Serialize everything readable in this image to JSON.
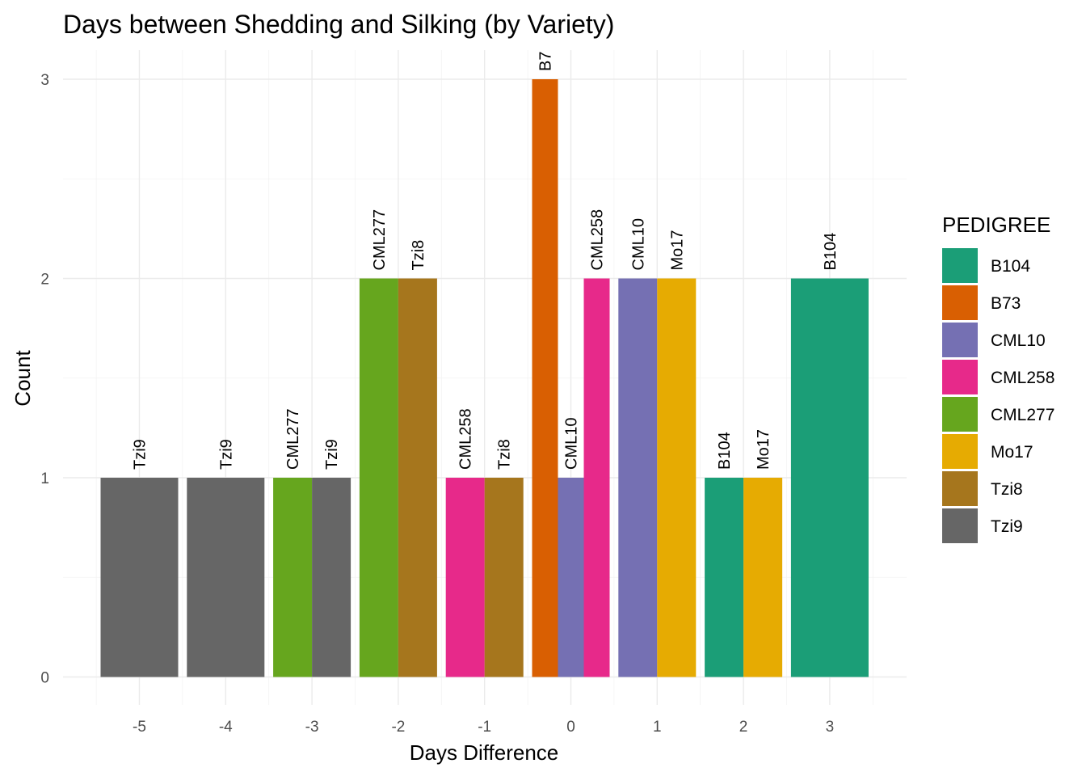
{
  "chart_data": {
    "type": "bar",
    "title": "Days between Shedding and Silking (by Variety)",
    "xlabel": "Days Difference",
    "ylabel": "Count",
    "x_ticks": [
      "-5",
      "-4",
      "-3",
      "-2",
      "-1",
      "0",
      "1",
      "2",
      "3"
    ],
    "y_ticks": [
      "0",
      "1",
      "2",
      "3"
    ],
    "ylim": [
      0,
      3
    ],
    "grid": true,
    "position": "dodge",
    "legend": {
      "title": "PEDIGREE",
      "placement": "right",
      "items": [
        {
          "name": "B104",
          "color": "#1b9e77"
        },
        {
          "name": "B73",
          "color": "#d95f02"
        },
        {
          "name": "CML10",
          "color": "#7570b3"
        },
        {
          "name": "CML258",
          "color": "#e7298a"
        },
        {
          "name": "CML277",
          "color": "#66a61e"
        },
        {
          "name": "Mo17",
          "color": "#e6ab02"
        },
        {
          "name": "Tzi8",
          "color": "#a6761d"
        },
        {
          "name": "Tzi9",
          "color": "#666666"
        }
      ]
    },
    "groups": [
      {
        "x": -5,
        "bars": [
          {
            "pedigree": "Tzi9",
            "count": 1,
            "label": "Tzi9"
          }
        ]
      },
      {
        "x": -4,
        "bars": [
          {
            "pedigree": "Tzi9",
            "count": 1,
            "label": "Tzi9"
          }
        ]
      },
      {
        "x": -3,
        "bars": [
          {
            "pedigree": "CML277",
            "count": 1,
            "label": "CML277"
          },
          {
            "pedigree": "Tzi9",
            "count": 1,
            "label": "Tzi9"
          }
        ]
      },
      {
        "x": -2,
        "bars": [
          {
            "pedigree": "CML277",
            "count": 2,
            "label": "CML277"
          },
          {
            "pedigree": "Tzi8",
            "count": 2,
            "label": "Tzi8"
          }
        ]
      },
      {
        "x": -1,
        "bars": [
          {
            "pedigree": "CML258",
            "count": 1,
            "label": "CML258"
          },
          {
            "pedigree": "Tzi8",
            "count": 1,
            "label": "Tzi8"
          }
        ]
      },
      {
        "x": 0,
        "bars": [
          {
            "pedigree": "B73",
            "count": 3,
            "label": "B7"
          },
          {
            "pedigree": "CML10",
            "count": 1,
            "label": "CML10"
          },
          {
            "pedigree": "CML258",
            "count": 2,
            "label": "CML258"
          }
        ]
      },
      {
        "x": 1,
        "bars": [
          {
            "pedigree": "CML10",
            "count": 2,
            "label": "CML10"
          },
          {
            "pedigree": "Mo17",
            "count": 2,
            "label": "Mo17"
          }
        ]
      },
      {
        "x": 2,
        "bars": [
          {
            "pedigree": "B104",
            "count": 1,
            "label": "B104"
          },
          {
            "pedigree": "Mo17",
            "count": 1,
            "label": "Mo17"
          }
        ]
      },
      {
        "x": 3,
        "bars": [
          {
            "pedigree": "B104",
            "count": 2,
            "label": "B104"
          }
        ]
      }
    ]
  }
}
